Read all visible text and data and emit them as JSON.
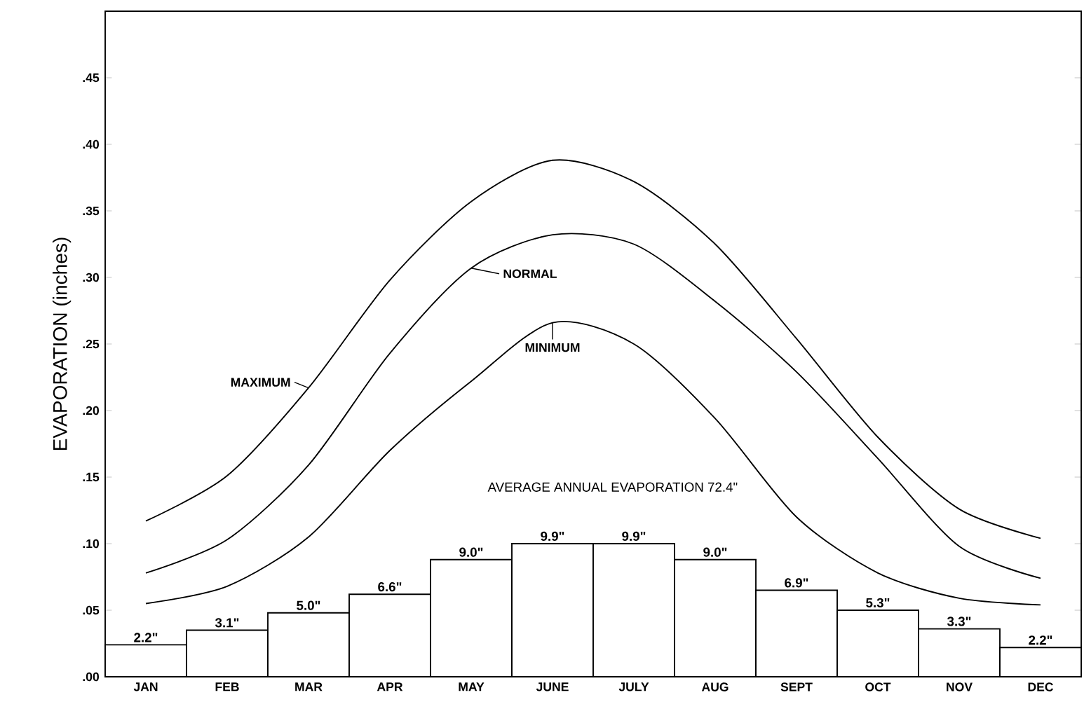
{
  "chart_data": {
    "type": "bar",
    "ylabel": "EVAPORATION (inches)",
    "categories": [
      "JAN",
      "FEB",
      "MAR",
      "APR",
      "MAY",
      "JUNE",
      "JULY",
      "AUG",
      "SEPT",
      "OCT",
      "NOV",
      "DEC"
    ],
    "ylim": [
      0,
      0.5
    ],
    "yticks": [
      {
        "value": 0,
        "label": ".00"
      },
      {
        "value": 0.05,
        "label": ".05"
      },
      {
        "value": 0.1,
        "label": ".10"
      },
      {
        "value": 0.15,
        "label": ".15"
      },
      {
        "value": 0.2,
        "label": ".20"
      },
      {
        "value": 0.25,
        "label": ".25"
      },
      {
        "value": 0.3,
        "label": ".30"
      },
      {
        "value": 0.35,
        "label": ".35"
      },
      {
        "value": 0.4,
        "label": ".40"
      },
      {
        "value": 0.45,
        "label": ".45"
      }
    ],
    "series": [
      {
        "color": "#ffffff",
        "values": [
          0.024,
          0.035,
          0.048,
          0.062,
          0.088,
          0.1,
          0.1,
          0.088,
          0.065,
          0.05,
          0.036,
          0.022
        ]
      },
      {
        "type": "line",
        "name": "MAXIMUM",
        "color": "#000000",
        "values": [
          0.117,
          0.151,
          0.217,
          0.298,
          0.357,
          0.388,
          0.372,
          0.325,
          0.254,
          0.18,
          0.126,
          0.104
        ]
      },
      {
        "type": "line",
        "name": "NORMAL",
        "color": "#000000",
        "values": [
          0.078,
          0.103,
          0.159,
          0.243,
          0.307,
          0.332,
          0.325,
          0.282,
          0.229,
          0.164,
          0.098,
          0.074
        ]
      },
      {
        "type": "line",
        "name": "MINIMUM",
        "color": "#000000",
        "values": [
          0.055,
          0.068,
          0.105,
          0.17,
          0.222,
          0.266,
          0.25,
          0.194,
          0.12,
          0.078,
          0.059,
          0.054
        ]
      }
    ],
    "annotations": [
      "AVERAGE ANNUAL EVAPORATION 72.4\"",
      {
        "text": "2.2\"",
        "x": "JAN",
        "y": 0.024
      },
      {
        "text": "3.1\"",
        "x": "FEB",
        "y": 0.035
      },
      {
        "text": "5.0\"",
        "x": "MAR",
        "y": 0.048
      },
      {
        "text": "6.6\"",
        "x": "APR",
        "y": 0.062
      },
      {
        "text": "9.0\"",
        "x": "MAY",
        "y": 0.088
      },
      {
        "text": "9.9\"",
        "x": "JUNE",
        "y": 0.1
      },
      {
        "text": "9.9\"",
        "x": "JULY",
        "y": 0.1
      },
      {
        "text": "9.0\"",
        "x": "AUG",
        "y": 0.088
      },
      {
        "text": "6.9\"",
        "x": "SEPT",
        "y": 0.065
      },
      {
        "text": "5.3\"",
        "x": "OCT",
        "y": 0.05
      },
      {
        "text": "3.3\"",
        "x": "NOV",
        "y": 0.036
      },
      {
        "text": "2.2\"",
        "x": "DEC",
        "y": 0.022
      }
    ]
  }
}
